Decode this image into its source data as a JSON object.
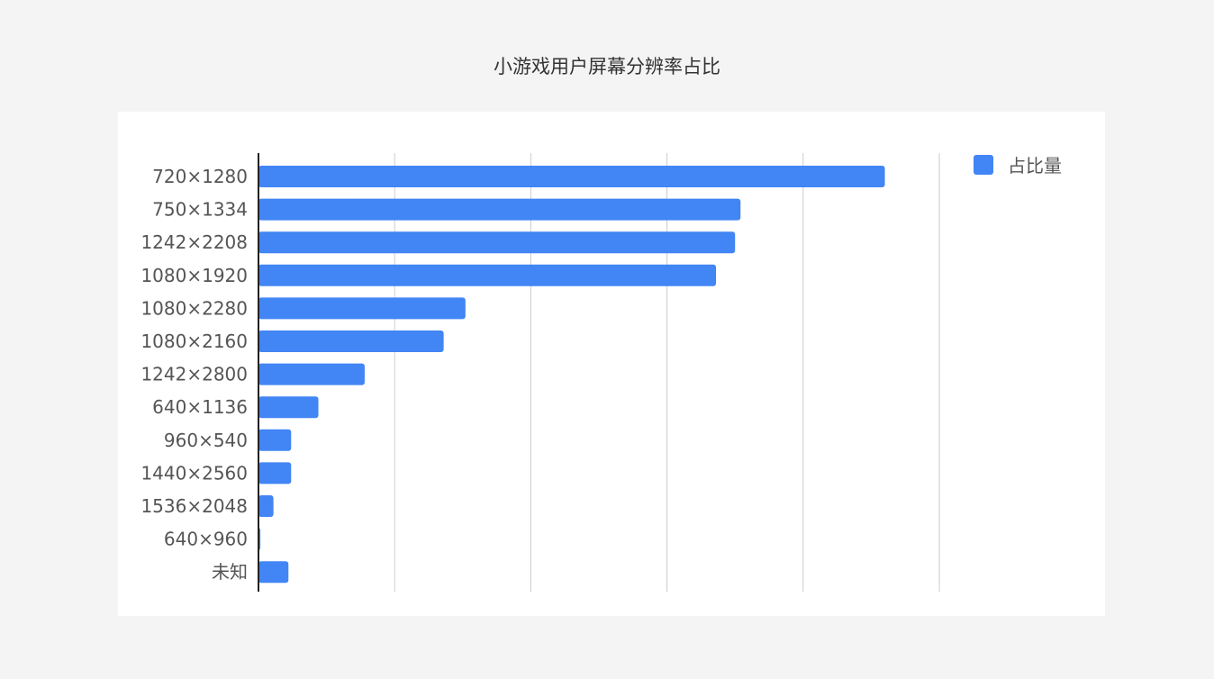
{
  "chart_data": {
    "type": "bar",
    "orientation": "horizontal",
    "title": "小游戏用户屏幕分辨率占比",
    "categories": [
      "720×1280",
      "750×1334",
      "1242×2208",
      "1080×1920",
      "1080×2280",
      "1080×2160",
      "1242×2800",
      "640×1136",
      "960×540",
      "1440×2560",
      "1536×2048",
      "640×960",
      "未知"
    ],
    "series": [
      {
        "name": "占比量",
        "color": "#4285f4",
        "values": [
          23.0,
          17.7,
          17.5,
          16.8,
          7.6,
          6.8,
          3.9,
          2.2,
          1.2,
          1.2,
          0.55,
          0.07,
          1.1
        ]
      }
    ],
    "xlim": [
      0,
      25
    ],
    "tick_labels_shown": false,
    "grid": "vertical",
    "legend_position": "top-right"
  }
}
